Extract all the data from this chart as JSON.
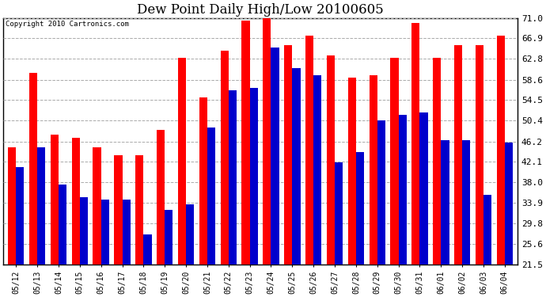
{
  "title": "Dew Point Daily High/Low 20100605",
  "copyright": "Copyright 2010 Cartronics.com",
  "dates": [
    "05/12",
    "05/13",
    "05/14",
    "05/15",
    "05/16",
    "05/17",
    "05/18",
    "05/19",
    "05/20",
    "05/21",
    "05/22",
    "05/23",
    "05/24",
    "05/25",
    "05/26",
    "05/27",
    "05/28",
    "05/29",
    "05/30",
    "05/31",
    "06/01",
    "06/02",
    "06/03",
    "06/04"
  ],
  "highs": [
    45.0,
    60.0,
    47.5,
    47.0,
    45.0,
    43.5,
    43.5,
    48.5,
    63.0,
    55.0,
    64.5,
    70.5,
    72.0,
    65.5,
    67.5,
    63.5,
    59.0,
    59.5,
    63.0,
    70.0,
    63.0,
    65.5,
    65.5,
    67.5
  ],
  "lows": [
    41.0,
    45.0,
    37.5,
    35.0,
    34.5,
    34.5,
    27.5,
    32.5,
    33.5,
    49.0,
    56.5,
    57.0,
    65.0,
    61.0,
    59.5,
    42.0,
    44.0,
    50.5,
    51.5,
    52.0,
    46.5,
    46.5,
    35.5,
    46.0
  ],
  "ymin": 21.5,
  "ymax": 71.0,
  "yticks": [
    21.5,
    25.6,
    29.8,
    33.9,
    38.0,
    42.1,
    46.2,
    50.4,
    54.5,
    58.6,
    62.8,
    66.9,
    71.0
  ],
  "high_color": "#ff0000",
  "low_color": "#0000cc",
  "bg_color": "#ffffff",
  "plot_bg_color": "#ffffff",
  "grid_color": "#aaaaaa",
  "title_fontsize": 12,
  "bar_width": 0.38,
  "dpi": 100
}
